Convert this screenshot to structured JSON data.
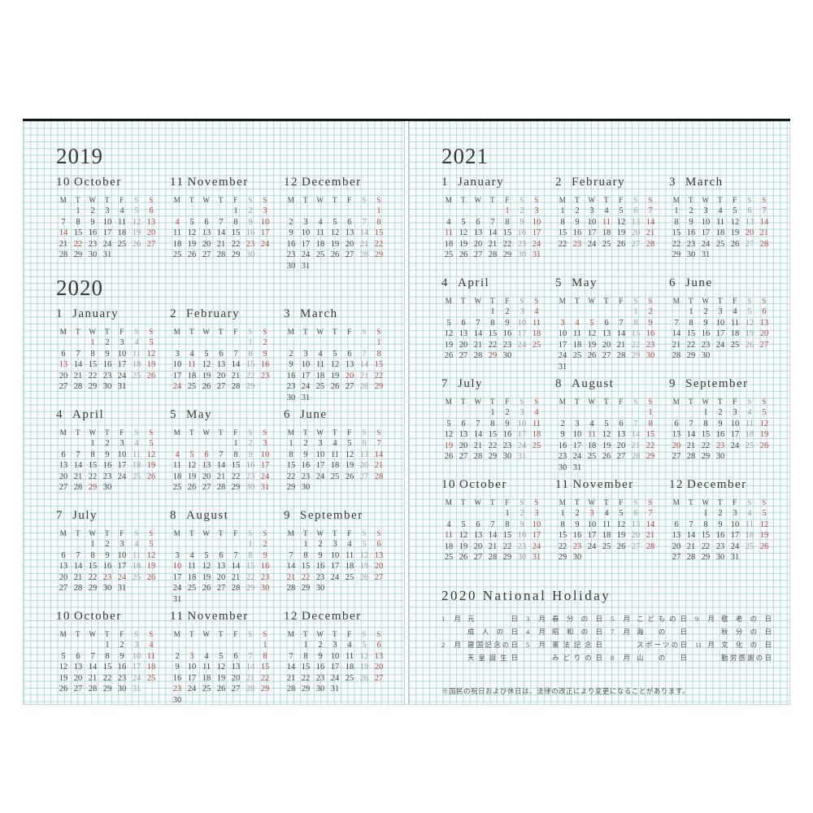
{
  "weekdays": [
    "M",
    "T",
    "W",
    "T",
    "F",
    "S",
    "S"
  ],
  "colors": {
    "ink": "#45453f",
    "holiday_red": "#b5483f",
    "saturday_gray": "#9d9d9b",
    "grid_line": "#aed6dc",
    "paper": "#f7fbfc",
    "top_edge": "#161616"
  },
  "left_page": {
    "sections": [
      {
        "year": "2019",
        "rows": [
          [
            {
              "num": "10",
              "name": "October",
              "start": 1,
              "days": 31,
              "red": [
                6,
                13,
                14,
                20,
                22,
                27
              ],
              "sat": [
                5,
                12,
                19,
                26
              ]
            },
            {
              "num": "11",
              "name": "November",
              "start": 4,
              "days": 30,
              "red": [
                3,
                4,
                10,
                17,
                23,
                24
              ],
              "sat": [
                2,
                9,
                16,
                30
              ]
            },
            {
              "num": "12",
              "name": "December",
              "start": 6,
              "days": 31,
              "red": [
                1,
                8,
                15,
                22,
                29
              ],
              "sat": [
                7,
                14,
                21,
                28
              ]
            }
          ]
        ]
      },
      {
        "year": "2020",
        "rows": [
          [
            {
              "num": "1",
              "name": "January",
              "start": 2,
              "days": 31,
              "red": [
                1,
                5,
                12,
                13,
                19,
                26
              ],
              "sat": [
                4,
                11,
                18,
                25
              ]
            },
            {
              "num": "2",
              "name": "February",
              "start": 5,
              "days": 29,
              "red": [
                2,
                9,
                11,
                16,
                23,
                24
              ],
              "sat": [
                1,
                8,
                15,
                22,
                29
              ]
            },
            {
              "num": "3",
              "name": "March",
              "start": 6,
              "days": 31,
              "red": [
                1,
                8,
                15,
                20,
                22,
                29
              ],
              "sat": [
                7,
                14,
                21,
                28
              ]
            }
          ],
          [
            {
              "num": "4",
              "name": "April",
              "start": 2,
              "days": 30,
              "red": [
                5,
                12,
                19,
                26,
                29
              ],
              "sat": [
                4,
                11,
                18,
                25
              ]
            },
            {
              "num": "5",
              "name": "May",
              "start": 4,
              "days": 31,
              "red": [
                3,
                4,
                5,
                6,
                10,
                17,
                24,
                31
              ],
              "sat": [
                2,
                9,
                16,
                23,
                30
              ]
            },
            {
              "num": "6",
              "name": "June",
              "start": 0,
              "days": 30,
              "red": [
                7,
                14,
                21,
                28
              ],
              "sat": [
                6,
                13,
                20,
                27
              ]
            }
          ],
          [
            {
              "num": "7",
              "name": "July",
              "start": 2,
              "days": 31,
              "red": [
                5,
                12,
                19,
                23,
                24,
                26
              ],
              "sat": [
                4,
                11,
                18,
                25
              ]
            },
            {
              "num": "8",
              "name": "August",
              "start": 5,
              "days": 31,
              "red": [
                2,
                9,
                10,
                16,
                23,
                30
              ],
              "sat": [
                1,
                8,
                15,
                22,
                29
              ]
            },
            {
              "num": "9",
              "name": "September",
              "start": 1,
              "days": 30,
              "red": [
                6,
                13,
                20,
                21,
                22,
                27
              ],
              "sat": [
                5,
                12,
                19,
                26
              ]
            }
          ],
          [
            {
              "num": "10",
              "name": "October",
              "start": 3,
              "days": 31,
              "red": [
                4,
                11,
                18,
                25
              ],
              "sat": [
                3,
                10,
                17,
                24,
                31
              ]
            },
            {
              "num": "11",
              "name": "November",
              "start": 6,
              "days": 30,
              "red": [
                1,
                3,
                8,
                15,
                22,
                23,
                29
              ],
              "sat": [
                7,
                14,
                21,
                28
              ]
            },
            {
              "num": "12",
              "name": "December",
              "start": 1,
              "days": 31,
              "red": [
                6,
                13,
                20,
                27
              ],
              "sat": [
                5,
                12,
                19,
                26
              ]
            }
          ]
        ]
      }
    ]
  },
  "right_page": {
    "sections": [
      {
        "year": "2021",
        "rows": [
          [
            {
              "num": "1",
              "name": "January",
              "start": 4,
              "days": 31,
              "red": [
                1,
                3,
                10,
                11,
                17,
                24,
                31
              ],
              "sat": [
                2,
                9,
                16,
                23,
                30
              ]
            },
            {
              "num": "2",
              "name": "February",
              "start": 0,
              "days": 28,
              "red": [
                7,
                11,
                14,
                21,
                23,
                28
              ],
              "sat": [
                6,
                13,
                20,
                27
              ]
            },
            {
              "num": "3",
              "name": "March",
              "start": 0,
              "days": 31,
              "red": [
                7,
                14,
                20,
                21,
                28
              ],
              "sat": [
                6,
                13,
                27
              ]
            }
          ],
          [
            {
              "num": "4",
              "name": "April",
              "start": 3,
              "days": 30,
              "red": [
                4,
                11,
                18,
                25,
                29
              ],
              "sat": [
                3,
                10,
                17,
                24
              ]
            },
            {
              "num": "5",
              "name": "May",
              "start": 5,
              "days": 31,
              "red": [
                2,
                3,
                4,
                5,
                9,
                16,
                23,
                30
              ],
              "sat": [
                1,
                8,
                15,
                22,
                29
              ]
            },
            {
              "num": "6",
              "name": "June",
              "start": 1,
              "days": 30,
              "red": [
                6,
                13,
                20,
                27
              ],
              "sat": [
                5,
                12,
                19,
                26
              ]
            }
          ],
          [
            {
              "num": "7",
              "name": "July",
              "start": 3,
              "days": 31,
              "red": [
                4,
                11,
                18,
                19,
                25
              ],
              "sat": [
                3,
                10,
                17,
                24,
                31
              ]
            },
            {
              "num": "8",
              "name": "August",
              "start": 6,
              "days": 31,
              "red": [
                1,
                8,
                11,
                15,
                22,
                29
              ],
              "sat": [
                7,
                14,
                21,
                28
              ]
            },
            {
              "num": "9",
              "name": "September",
              "start": 2,
              "days": 30,
              "red": [
                5,
                12,
                19,
                20,
                23,
                26
              ],
              "sat": [
                4,
                11,
                18,
                25
              ]
            }
          ],
          [
            {
              "num": "10",
              "name": "October",
              "start": 4,
              "days": 31,
              "red": [
                3,
                10,
                11,
                17,
                24,
                31
              ],
              "sat": [
                2,
                9,
                16,
                23,
                30
              ]
            },
            {
              "num": "11",
              "name": "November",
              "start": 0,
              "days": 30,
              "red": [
                3,
                7,
                14,
                21,
                23,
                28
              ],
              "sat": [
                6,
                13,
                20,
                27
              ]
            },
            {
              "num": "12",
              "name": "December",
              "start": 2,
              "days": 31,
              "red": [
                5,
                12,
                19,
                26
              ],
              "sat": [
                4,
                11,
                18,
                25
              ]
            }
          ]
        ]
      }
    ],
    "holiday_section": {
      "title": "2020  National  Holiday",
      "columns": [
        {
          "entries": [
            {
              "month": "1月",
              "name": "元日"
            },
            {
              "month": "",
              "name": "成人の日"
            },
            {
              "month": "2月",
              "name": "建国記念の日"
            },
            {
              "month": "",
              "name": "天皇誕生日"
            }
          ]
        },
        {
          "entries": [
            {
              "month": "3月",
              "name": "春分の日"
            },
            {
              "month": "4月",
              "name": "昭和の日"
            },
            {
              "month": "5月",
              "name": "憲法記念日"
            },
            {
              "month": "",
              "name": "みどりの日"
            }
          ]
        },
        {
          "entries": [
            {
              "month": "5月",
              "name": "こどもの日"
            },
            {
              "month": "7月",
              "name": "海の日"
            },
            {
              "month": "",
              "name": "スポーツの日"
            },
            {
              "month": "8月",
              "name": "山の日"
            }
          ]
        },
        {
          "entries": [
            {
              "month": "9月",
              "name": "敬老の日"
            },
            {
              "month": "",
              "name": "秋分の日"
            },
            {
              "month": "11月",
              "name": "文化の日"
            },
            {
              "month": "",
              "name": "勤労感謝の日"
            }
          ]
        }
      ],
      "note": "※国民の祝日および休日は、法律の改正により変更になることがあります。"
    }
  }
}
